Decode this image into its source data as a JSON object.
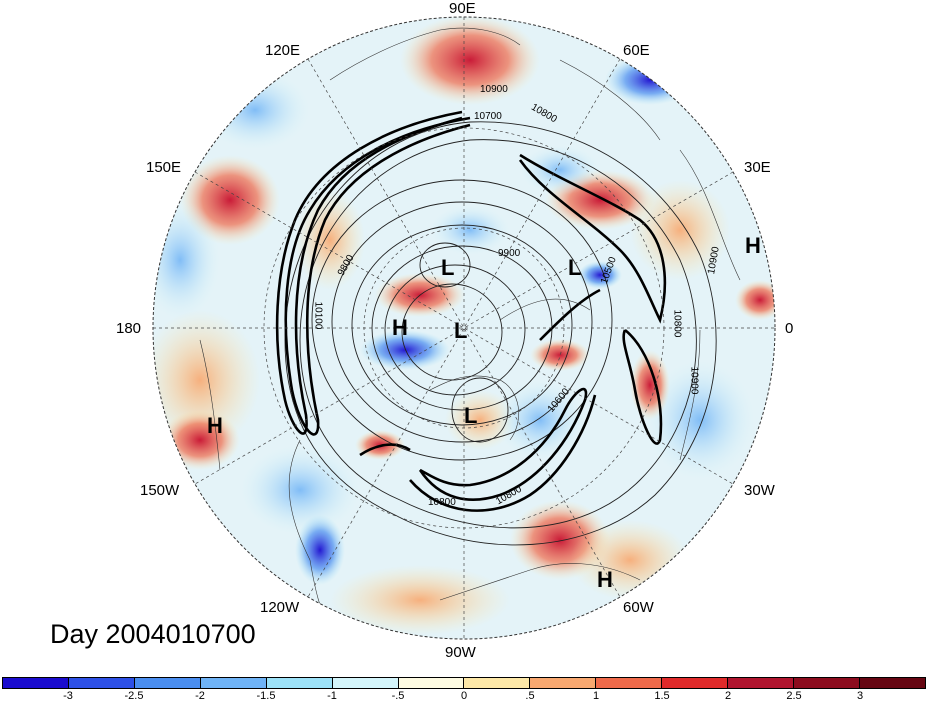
{
  "title": "Day 2004010700",
  "longitude_labels": [
    {
      "id": "90e",
      "text": "90E"
    },
    {
      "id": "120e",
      "text": "120E"
    },
    {
      "id": "60e",
      "text": "60E"
    },
    {
      "id": "150e",
      "text": "150E"
    },
    {
      "id": "30e",
      "text": "30E"
    },
    {
      "id": "180",
      "text": "180"
    },
    {
      "id": "0",
      "text": "0"
    },
    {
      "id": "150w",
      "text": "150W"
    },
    {
      "id": "30w",
      "text": "30W"
    },
    {
      "id": "120w",
      "text": "120W"
    },
    {
      "id": "60w",
      "text": "60W"
    },
    {
      "id": "90w",
      "text": "90W"
    }
  ],
  "pressure_centers": [
    "L",
    "L",
    "H",
    "L",
    "L",
    "H",
    "H",
    "H"
  ],
  "contour_labels": [
    "10900",
    "10700",
    "10800",
    "9900",
    "9800",
    "10100",
    "10500",
    "10900",
    "10600",
    "10800",
    "10900",
    "10800",
    "10800"
  ],
  "colorbar": {
    "colors": [
      "#1a0ccf",
      "#2d50e6",
      "#4a8ef0",
      "#6fb3f6",
      "#9de2f8",
      "#d4f5fb",
      "#fdfbe2",
      "#fde8a8",
      "#f8a870",
      "#ef6a4a",
      "#e02a2a",
      "#b0142e",
      "#8c0c1e",
      "#660612"
    ],
    "tick_labels": [
      "-3",
      "-2.5",
      "-2",
      "-1.5",
      "-1",
      "-.5",
      "0",
      ".5",
      "1",
      "1.5",
      "2",
      "2.5",
      "3"
    ]
  }
}
